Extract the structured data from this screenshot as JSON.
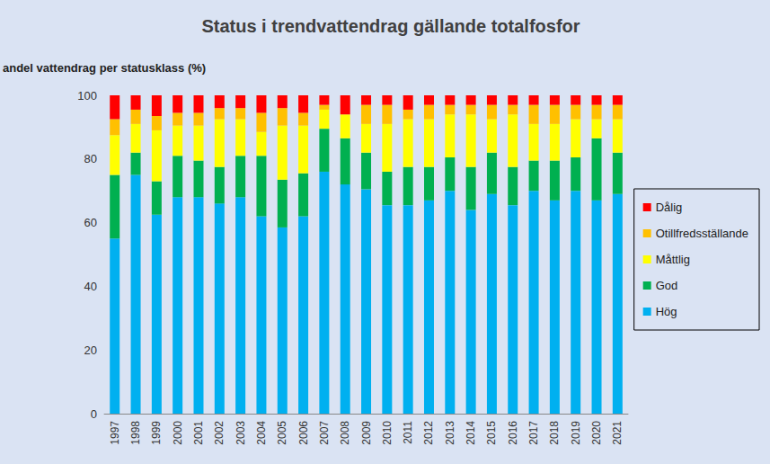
{
  "chart_data": {
    "type": "bar",
    "title": "Status i trendvattendrag gällande totalfosfor",
    "y_label": "andel vattendrag per statusklass (%)",
    "categories": [
      "1997",
      "1998",
      "1999",
      "2000",
      "2001",
      "2002",
      "2003",
      "2004",
      "2005",
      "2006",
      "2007",
      "2008",
      "2009",
      "2010",
      "2011",
      "2012",
      "2013",
      "2014",
      "2015",
      "2016",
      "2017",
      "2018",
      "2019",
      "2020",
      "2021"
    ],
    "series": [
      {
        "name": "Dålig",
        "color": "#ff0000",
        "values": [
          7.5,
          4.5,
          6.5,
          5.5,
          5.5,
          4,
          4,
          5.5,
          4,
          5.5,
          3,
          6,
          3,
          3,
          4.5,
          3,
          3,
          3,
          3,
          3,
          3,
          3,
          3,
          3,
          3
        ]
      },
      {
        "name": "Otillfredsställande",
        "color": "#ffc000",
        "values": [
          5,
          4.5,
          4.5,
          4,
          4,
          3.5,
          3.5,
          6,
          5.5,
          4,
          1.5,
          0,
          6,
          6,
          3,
          4.5,
          3,
          3,
          4.5,
          3,
          6,
          6,
          4.5,
          4.5,
          4.5
        ]
      },
      {
        "name": "Måttlig",
        "color": "#ffff00",
        "values": [
          12.5,
          9,
          16,
          9.5,
          11,
          15,
          11.5,
          7.5,
          17,
          15,
          6,
          7.5,
          9,
          15,
          15,
          15,
          13.5,
          16.5,
          10.5,
          16.5,
          11.5,
          11.5,
          12,
          6,
          10.5
        ]
      },
      {
        "name": "God",
        "color": "#00b050",
        "values": [
          20,
          7,
          10.5,
          13,
          11.5,
          11.5,
          13,
          19,
          15,
          13.5,
          13.5,
          14.5,
          11.5,
          10.5,
          12,
          10.5,
          10.5,
          13.5,
          13,
          12,
          9.5,
          12.5,
          10.5,
          19.5,
          13
        ]
      },
      {
        "name": "Hög",
        "color": "#00b0f0",
        "values": [
          55,
          75,
          62.5,
          68,
          68,
          66,
          68,
          62,
          58.5,
          62,
          76,
          72,
          70.5,
          65.5,
          65.5,
          67,
          70,
          64,
          69,
          65.5,
          70,
          67,
          70,
          67,
          69
        ]
      }
    ],
    "ylim": [
      0,
      100
    ],
    "yticks": [
      0,
      20,
      40,
      60,
      80,
      100
    ],
    "stacked": true,
    "grid": false,
    "legend": "right"
  }
}
